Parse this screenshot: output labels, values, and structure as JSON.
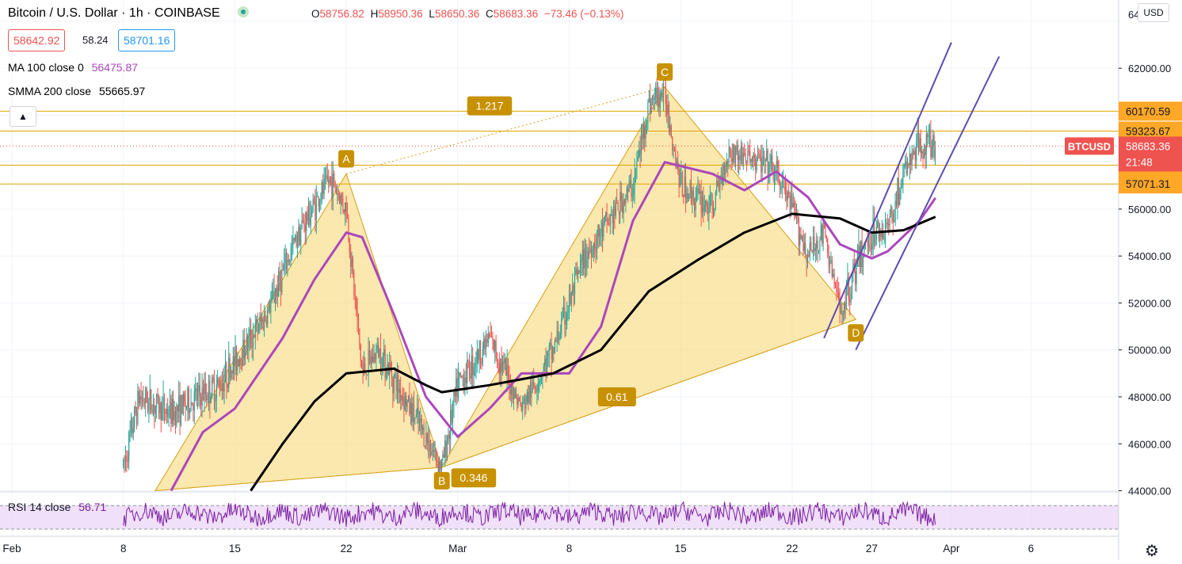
{
  "header": {
    "symbol": "Bitcoin / U.S. Dollar · 1h · COINBASE",
    "open_label": "O",
    "open": "58756.82",
    "high_label": "H",
    "high": "58950.36",
    "low_label": "L",
    "low": "58650.36",
    "close_label": "C",
    "close": "58683.36",
    "change": "−73.46 (−0.13%)",
    "bid": "58642.92",
    "spread": "58.24",
    "ask": "58701.16",
    "ma100_label": "MA 100 close 0",
    "ma100_value": "56475.87",
    "smma200_label": "SMMA 200 close",
    "smma200_value": "55665.97",
    "collapse_icon": "chevron-up-icon",
    "currency": "USD"
  },
  "colors": {
    "up": "#26a69a",
    "down": "#ef5350",
    "ma": "#ab47bc",
    "smma": "#000000",
    "pattern_fill": "#f9d97a",
    "pattern_line": "#d4a017",
    "label_bg": "#c79100",
    "hline": "#e0a400",
    "channel": "#5c4db1",
    "rsi": "#7b1fa2",
    "rsi_band": "#ead3f7",
    "last_price_bg": "#ef5350"
  },
  "price_axis": {
    "ticks": [
      "62000.00",
      "60000.00",
      "58000.00",
      "56000.00",
      "54000.00",
      "52000.00",
      "50000.00",
      "48000.00",
      "46000.00",
      "44000.00"
    ],
    "partial_top_tick": "64"
  },
  "time_axis": {
    "ticks": [
      "Feb",
      "8",
      "15",
      "22",
      "Mar",
      "8",
      "15",
      "22",
      "27",
      "Apr",
      "6"
    ]
  },
  "chart_data": {
    "type": "candlestick",
    "symbol": "BTCUSD",
    "interval": "1h",
    "ylim": [
      43950,
      64300
    ],
    "x_range": [
      "Feb 1",
      "Apr 9"
    ],
    "price_path": [
      {
        "x": "Feb 8",
        "y": 45000
      },
      {
        "x": "Feb 9",
        "y": 48000
      },
      {
        "x": "Feb 11",
        "y": 47300
      },
      {
        "x": "Feb 14",
        "y": 48500
      },
      {
        "x": "Feb 17",
        "y": 51500
      },
      {
        "x": "Feb 19",
        "y": 55000
      },
      {
        "x": "Feb 21",
        "y": 57300
      },
      {
        "x": "Feb 22",
        "y": 56000
      },
      {
        "x": "Feb 23",
        "y": 49000
      },
      {
        "x": "Feb 24",
        "y": 50000
      },
      {
        "x": "Feb 26",
        "y": 47500
      },
      {
        "x": "Feb 28",
        "y": 45000
      },
      {
        "x": "Mar 1",
        "y": 48500
      },
      {
        "x": "Mar 3",
        "y": 50500
      },
      {
        "x": "Mar 5",
        "y": 47500
      },
      {
        "x": "Mar 7",
        "y": 50000
      },
      {
        "x": "Mar 9",
        "y": 54000
      },
      {
        "x": "Mar 12",
        "y": 57000
      },
      {
        "x": "Mar 13",
        "y": 60500
      },
      {
        "x": "Mar 14",
        "y": 61000
      },
      {
        "x": "Mar 15",
        "y": 57000
      },
      {
        "x": "Mar 17",
        "y": 56000
      },
      {
        "x": "Mar 18",
        "y": 58500
      },
      {
        "x": "Mar 20",
        "y": 58000
      },
      {
        "x": "Mar 21",
        "y": 57500
      },
      {
        "x": "Mar 22",
        "y": 56000
      },
      {
        "x": "Mar 23",
        "y": 54000
      },
      {
        "x": "Mar 24",
        "y": 55000
      },
      {
        "x": "Mar 25",
        "y": 51600
      },
      {
        "x": "Mar 26",
        "y": 53500
      },
      {
        "x": "Mar 27",
        "y": 55000
      },
      {
        "x": "Mar 28",
        "y": 55200
      },
      {
        "x": "Mar 29",
        "y": 57500
      },
      {
        "x": "Mar 30",
        "y": 58800
      },
      {
        "x": "Mar 31",
        "y": 58683
      }
    ],
    "series": [
      {
        "name": "MA 100 close 0",
        "points": [
          {
            "x": "Feb 11",
            "y": 44000
          },
          {
            "x": "Feb 13",
            "y": 46500
          },
          {
            "x": "Feb 15",
            "y": 47500
          },
          {
            "x": "Feb 18",
            "y": 50500
          },
          {
            "x": "Feb 20",
            "y": 53000
          },
          {
            "x": "Feb 22",
            "y": 55000
          },
          {
            "x": "Feb 23",
            "y": 54800
          },
          {
            "x": "Feb 25",
            "y": 51500
          },
          {
            "x": "Feb 27",
            "y": 48000
          },
          {
            "x": "Mar 1",
            "y": 46300
          },
          {
            "x": "Mar 3",
            "y": 47500
          },
          {
            "x": "Mar 5",
            "y": 49000
          },
          {
            "x": "Mar 8",
            "y": 49000
          },
          {
            "x": "Mar 10",
            "y": 51000
          },
          {
            "x": "Mar 12",
            "y": 55500
          },
          {
            "x": "Mar 14",
            "y": 58000
          },
          {
            "x": "Mar 17",
            "y": 57500
          },
          {
            "x": "Mar 19",
            "y": 56800
          },
          {
            "x": "Mar 21",
            "y": 57600
          },
          {
            "x": "Mar 23",
            "y": 56500
          },
          {
            "x": "Mar 25",
            "y": 54500
          },
          {
            "x": "Mar 27",
            "y": 53900
          },
          {
            "x": "Mar 28",
            "y": 54200
          },
          {
            "x": "Mar 30",
            "y": 55500
          },
          {
            "x": "Mar 31",
            "y": 56476
          }
        ]
      },
      {
        "name": "SMMA 200 close",
        "points": [
          {
            "x": "Feb 16",
            "y": 44000
          },
          {
            "x": "Feb 18",
            "y": 46000
          },
          {
            "x": "Feb 20",
            "y": 47800
          },
          {
            "x": "Feb 22",
            "y": 49000
          },
          {
            "x": "Feb 25",
            "y": 49200
          },
          {
            "x": "Feb 27",
            "y": 48500
          },
          {
            "x": "Feb 28",
            "y": 48200
          },
          {
            "x": "Mar 3",
            "y": 48500
          },
          {
            "x": "Mar 7",
            "y": 49000
          },
          {
            "x": "Mar 10",
            "y": 50000
          },
          {
            "x": "Mar 13",
            "y": 52500
          },
          {
            "x": "Mar 16",
            "y": 53800
          },
          {
            "x": "Mar 19",
            "y": 55000
          },
          {
            "x": "Mar 22",
            "y": 55800
          },
          {
            "x": "Mar 25",
            "y": 55600
          },
          {
            "x": "Mar 27",
            "y": 55000
          },
          {
            "x": "Mar 29",
            "y": 55100
          },
          {
            "x": "Mar 31",
            "y": 55666
          }
        ]
      }
    ],
    "pattern": {
      "points": [
        {
          "label": "A",
          "x": "Feb 22",
          "y": 57500
        },
        {
          "label": "B",
          "x": "Feb 28",
          "y": 45000
        },
        {
          "label": "C",
          "x": "Mar 14",
          "y": 61200
        },
        {
          "label": "D",
          "x": "Mar 26",
          "y": 51300
        }
      ],
      "start": {
        "x": "Feb 10",
        "y": 44000
      },
      "ratios": [
        {
          "label": "1.217",
          "x": "Mar 3",
          "y": 60400
        },
        {
          "label": "0.61",
          "x": "Mar 11",
          "y": 48000
        },
        {
          "label": "0.346",
          "x": "Mar 2",
          "y": 44550
        }
      ]
    },
    "horizontal_levels": [
      "60170.59",
      "59323.67",
      "57873.11",
      "57071.31"
    ],
    "last_price": {
      "symbol": "BTCUSD",
      "value": "58683.36",
      "countdown": "21:48"
    },
    "channel_lines": [
      [
        {
          "x": "Mar 24",
          "y": 50500
        },
        {
          "x": "Apr 1",
          "y": 63100
        }
      ],
      [
        {
          "x": "Mar 26",
          "y": 50000
        },
        {
          "x": "Apr 4",
          "y": 62500
        }
      ]
    ],
    "rsi": {
      "label": "RSI 14 close",
      "value": "56.71",
      "upper_band": 70,
      "lower_band": 30
    }
  }
}
